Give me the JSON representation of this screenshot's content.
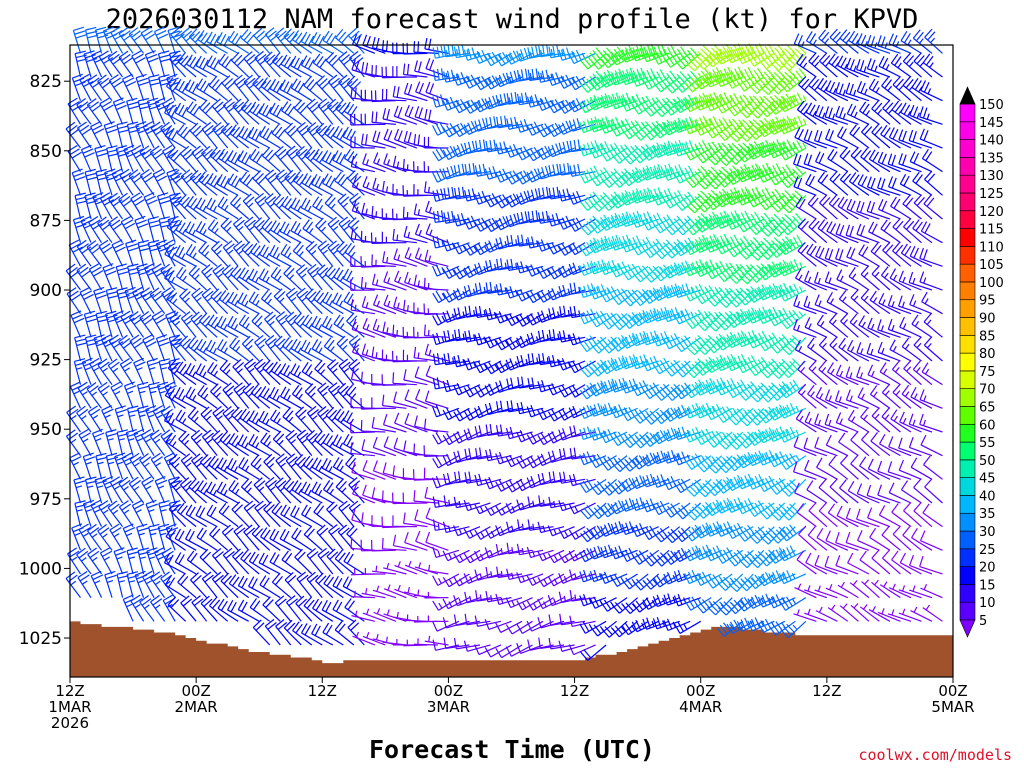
{
  "chart_data": {
    "type": "wind_profile",
    "title": "2026030112 NAM forecast wind profile (kt) for KPVD",
    "xlabel": "Forecast Time (UTC)",
    "credit": "coolwx.com/models",
    "ylabel": "",
    "y_axis": {
      "ylim": [
        812,
        1039
      ],
      "ticks": [
        "825",
        "850",
        "875",
        "900",
        "925",
        "950",
        "975",
        "1000",
        "1025"
      ]
    },
    "x_axis": {
      "xlim_hours": [
        0,
        84
      ],
      "ticks": [
        {
          "hour": 0,
          "line1": "12Z",
          "line2": "1MAR",
          "line3": "2026"
        },
        {
          "hour": 12,
          "line1": "00Z",
          "line2": "2MAR",
          "line3": ""
        },
        {
          "hour": 24,
          "line1": "12Z",
          "line2": "",
          "line3": ""
        },
        {
          "hour": 36,
          "line1": "00Z",
          "line2": "3MAR",
          "line3": ""
        },
        {
          "hour": 48,
          "line1": "12Z",
          "line2": "",
          "line3": ""
        },
        {
          "hour": 60,
          "line1": "00Z",
          "line2": "4MAR",
          "line3": ""
        },
        {
          "hour": 72,
          "line1": "12Z",
          "line2": "",
          "line3": ""
        },
        {
          "hour": 84,
          "line1": "00Z",
          "line2": "5MAR",
          "line3": ""
        }
      ]
    },
    "colorbar": {
      "levels": [
        5,
        10,
        15,
        20,
        25,
        30,
        35,
        40,
        45,
        50,
        55,
        60,
        65,
        70,
        75,
        80,
        85,
        90,
        95,
        100,
        105,
        110,
        115,
        120,
        125,
        130,
        135,
        140,
        145,
        150
      ],
      "colors": [
        "#8000ff",
        "#5a00ff",
        "#3000ff",
        "#0000ff",
        "#0030ff",
        "#0060ff",
        "#0090ff",
        "#00b8ff",
        "#00d8e0",
        "#00f0b0",
        "#00ff70",
        "#20ff20",
        "#60ff00",
        "#a0ff00",
        "#d8ff00",
        "#ffff00",
        "#ffe000",
        "#ffc000",
        "#ffa000",
        "#ff8000",
        "#ff6000",
        "#ff3000",
        "#ff0000",
        "#ff0040",
        "#ff0070",
        "#ff0090",
        "#ff00b0",
        "#ff00d0",
        "#ff00e8",
        "#ff00ff"
      ]
    },
    "surface_pressure_mb": [
      1019,
      1020,
      1020,
      1021,
      1021,
      1021,
      1022,
      1022,
      1023,
      1023,
      1024,
      1025,
      1026,
      1027,
      1027,
      1028,
      1029,
      1030,
      1030,
      1031,
      1031,
      1032,
      1032,
      1033,
      1034,
      1034,
      1033,
      1033,
      1033,
      1033,
      1033,
      1033,
      1033,
      1033,
      1033,
      1033,
      1033,
      1033,
      1033,
      1033,
      1033,
      1033,
      1033,
      1033,
      1033,
      1033,
      1033,
      1033,
      1033,
      1032,
      1031,
      1031,
      1030,
      1029,
      1028,
      1027,
      1026,
      1025,
      1024,
      1023,
      1022,
      1021,
      1021,
      1021,
      1022,
      1022,
      1023,
      1023,
      1023,
      1024,
      1024,
      1024,
      1024,
      1024,
      1024,
      1024,
      1024,
      1024,
      1024,
      1024,
      1024,
      1024,
      1024,
      1024,
      1024
    ],
    "surface_color": "#a0522d",
    "wind_regimes": [
      {
        "hours": [
          0,
          10
        ],
        "speed_kt": [
          25,
          30
        ],
        "direction_deg": 335
      },
      {
        "hours": [
          10,
          28
        ],
        "speed_kt": [
          20,
          30
        ],
        "direction_deg": 310
      },
      {
        "hours": [
          28,
          36
        ],
        "speed_kt": [
          5,
          20
        ],
        "direction_deg": 280
      },
      {
        "hours": [
          36,
          50
        ],
        "speed_kt": [
          10,
          35
        ],
        "direction_deg": 250
      },
      {
        "hours": [
          50,
          60
        ],
        "speed_kt": [
          20,
          60
        ],
        "direction_deg": 240
      },
      {
        "hours": [
          60,
          70
        ],
        "speed_kt": [
          30,
          70
        ],
        "direction_deg": 235
      },
      {
        "hours": [
          70,
          84
        ],
        "speed_kt": [
          5,
          25
        ],
        "direction_deg": 300
      }
    ]
  }
}
